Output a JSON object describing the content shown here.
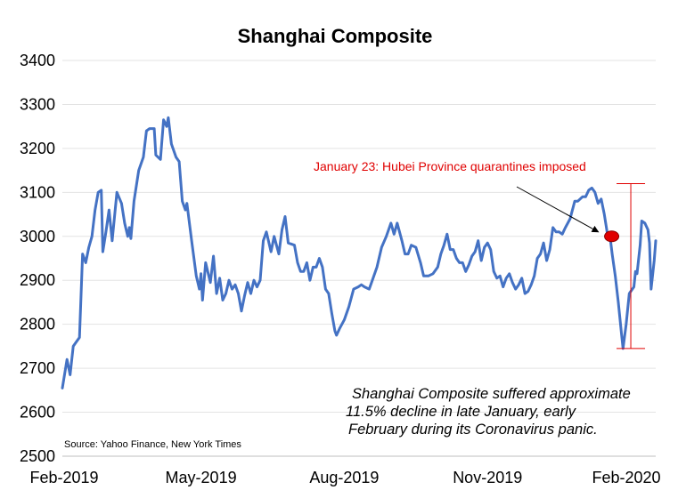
{
  "chart_data": {
    "type": "line",
    "title": "Shanghai Composite",
    "xlabel": "",
    "ylabel": "",
    "ylim": [
      2500,
      3400
    ],
    "yticks": [
      2500,
      2600,
      2700,
      2800,
      2900,
      3000,
      3100,
      3200,
      3300,
      3400
    ],
    "xlim": [
      "2019-02-01",
      "2020-02-17"
    ],
    "xticks": [
      {
        "date": "2019-02-01",
        "label": "Feb-2019"
      },
      {
        "date": "2019-05-01",
        "label": "May-2019"
      },
      {
        "date": "2019-08-01",
        "label": "Aug-2019"
      },
      {
        "date": "2019-11-01",
        "label": "Nov-2019"
      },
      {
        "date": "2020-02-01",
        "label": "Feb-2020"
      }
    ],
    "grid": true,
    "series": [
      {
        "color": "#4472c4",
        "points": [
          [
            "2019-02-01",
            2655
          ],
          [
            "2019-02-04",
            2720
          ],
          [
            "2019-02-06",
            2685
          ],
          [
            "2019-02-08",
            2750
          ],
          [
            "2019-02-10",
            2760
          ],
          [
            "2019-02-12",
            2770
          ],
          [
            "2019-02-14",
            2960
          ],
          [
            "2019-02-16",
            2940
          ],
          [
            "2019-02-18",
            2975
          ],
          [
            "2019-02-20",
            3000
          ],
          [
            "2019-02-22",
            3060
          ],
          [
            "2019-02-24",
            3100
          ],
          [
            "2019-02-26",
            3105
          ],
          [
            "2019-02-27",
            2965
          ],
          [
            "2019-03-01",
            3010
          ],
          [
            "2019-03-03",
            3060
          ],
          [
            "2019-03-05",
            2990
          ],
          [
            "2019-03-08",
            3100
          ],
          [
            "2019-03-11",
            3075
          ],
          [
            "2019-03-13",
            3030
          ],
          [
            "2019-03-15",
            3000
          ],
          [
            "2019-03-16",
            3020
          ],
          [
            "2019-03-17",
            2995
          ],
          [
            "2019-03-19",
            3080
          ],
          [
            "2019-03-22",
            3150
          ],
          [
            "2019-03-25",
            3180
          ],
          [
            "2019-03-27",
            3240
          ],
          [
            "2019-03-29",
            3245
          ],
          [
            "2019-04-01",
            3245
          ],
          [
            "2019-04-02",
            3185
          ],
          [
            "2019-04-05",
            3175
          ],
          [
            "2019-04-07",
            3265
          ],
          [
            "2019-04-09",
            3250
          ],
          [
            "2019-04-10",
            3270
          ],
          [
            "2019-04-12",
            3210
          ],
          [
            "2019-04-15",
            3180
          ],
          [
            "2019-04-17",
            3170
          ],
          [
            "2019-04-19",
            3080
          ],
          [
            "2019-04-21",
            3060
          ],
          [
            "2019-04-22",
            3075
          ],
          [
            "2019-04-25",
            2990
          ],
          [
            "2019-04-28",
            2910
          ],
          [
            "2019-04-30",
            2880
          ],
          [
            "2019-05-01",
            2915
          ],
          [
            "2019-05-02",
            2855
          ],
          [
            "2019-05-04",
            2940
          ],
          [
            "2019-05-07",
            2895
          ],
          [
            "2019-05-09",
            2955
          ],
          [
            "2019-05-11",
            2870
          ],
          [
            "2019-05-13",
            2905
          ],
          [
            "2019-05-15",
            2855
          ],
          [
            "2019-05-17",
            2870
          ],
          [
            "2019-05-19",
            2900
          ],
          [
            "2019-05-21",
            2880
          ],
          [
            "2019-05-23",
            2890
          ],
          [
            "2019-05-25",
            2870
          ],
          [
            "2019-05-27",
            2830
          ],
          [
            "2019-05-29",
            2865
          ],
          [
            "2019-05-31",
            2895
          ],
          [
            "2019-06-02",
            2870
          ],
          [
            "2019-06-04",
            2900
          ],
          [
            "2019-06-06",
            2885
          ],
          [
            "2019-06-08",
            2900
          ],
          [
            "2019-06-10",
            2990
          ],
          [
            "2019-06-12",
            3010
          ],
          [
            "2019-06-15",
            2965
          ],
          [
            "2019-06-17",
            3000
          ],
          [
            "2019-06-20",
            2960
          ],
          [
            "2019-06-22",
            3015
          ],
          [
            "2019-06-24",
            3045
          ],
          [
            "2019-06-26",
            2985
          ],
          [
            "2019-06-30",
            2980
          ],
          [
            "2019-07-02",
            2940
          ],
          [
            "2019-07-04",
            2920
          ],
          [
            "2019-07-06",
            2920
          ],
          [
            "2019-07-08",
            2940
          ],
          [
            "2019-07-10",
            2900
          ],
          [
            "2019-07-12",
            2930
          ],
          [
            "2019-07-14",
            2930
          ],
          [
            "2019-07-16",
            2950
          ],
          [
            "2019-07-18",
            2930
          ],
          [
            "2019-07-20",
            2880
          ],
          [
            "2019-07-22",
            2870
          ],
          [
            "2019-07-24",
            2825
          ],
          [
            "2019-07-26",
            2785
          ],
          [
            "2019-07-27",
            2775
          ],
          [
            "2019-07-29",
            2790
          ],
          [
            "2019-08-01",
            2810
          ],
          [
            "2019-08-04",
            2840
          ],
          [
            "2019-08-07",
            2880
          ],
          [
            "2019-08-10",
            2885
          ],
          [
            "2019-08-12",
            2890
          ],
          [
            "2019-08-14",
            2885
          ],
          [
            "2019-08-17",
            2880
          ],
          [
            "2019-08-19",
            2900
          ],
          [
            "2019-08-22",
            2930
          ],
          [
            "2019-08-25",
            2975
          ],
          [
            "2019-08-28",
            3000
          ],
          [
            "2019-08-31",
            3030
          ],
          [
            "2019-09-02",
            3005
          ],
          [
            "2019-09-04",
            3030
          ],
          [
            "2019-09-07",
            2990
          ],
          [
            "2019-09-09",
            2960
          ],
          [
            "2019-09-11",
            2960
          ],
          [
            "2019-09-13",
            2980
          ],
          [
            "2019-09-16",
            2975
          ],
          [
            "2019-09-19",
            2940
          ],
          [
            "2019-09-21",
            2910
          ],
          [
            "2019-09-24",
            2910
          ],
          [
            "2019-09-27",
            2915
          ],
          [
            "2019-09-30",
            2930
          ],
          [
            "2019-10-02",
            2960
          ],
          [
            "2019-10-04",
            2980
          ],
          [
            "2019-10-06",
            3005
          ],
          [
            "2019-10-08",
            2970
          ],
          [
            "2019-10-10",
            2970
          ],
          [
            "2019-10-12",
            2950
          ],
          [
            "2019-10-14",
            2940
          ],
          [
            "2019-10-16",
            2940
          ],
          [
            "2019-10-18",
            2920
          ],
          [
            "2019-10-20",
            2935
          ],
          [
            "2019-10-22",
            2955
          ],
          [
            "2019-10-24",
            2965
          ],
          [
            "2019-10-26",
            2990
          ],
          [
            "2019-10-28",
            2945
          ],
          [
            "2019-10-30",
            2975
          ],
          [
            "2019-11-01",
            2985
          ],
          [
            "2019-11-03",
            2970
          ],
          [
            "2019-11-05",
            2920
          ],
          [
            "2019-11-07",
            2905
          ],
          [
            "2019-11-09",
            2910
          ],
          [
            "2019-11-11",
            2885
          ],
          [
            "2019-11-13",
            2905
          ],
          [
            "2019-11-15",
            2915
          ],
          [
            "2019-11-17",
            2895
          ],
          [
            "2019-11-19",
            2880
          ],
          [
            "2019-11-21",
            2890
          ],
          [
            "2019-11-23",
            2905
          ],
          [
            "2019-11-25",
            2870
          ],
          [
            "2019-11-27",
            2875
          ],
          [
            "2019-11-29",
            2890
          ],
          [
            "2019-12-01",
            2910
          ],
          [
            "2019-12-03",
            2950
          ],
          [
            "2019-12-05",
            2960
          ],
          [
            "2019-12-07",
            2985
          ],
          [
            "2019-12-09",
            2945
          ],
          [
            "2019-12-11",
            2970
          ],
          [
            "2019-12-13",
            3020
          ],
          [
            "2019-12-15",
            3010
          ],
          [
            "2019-12-17",
            3010
          ],
          [
            "2019-12-19",
            3005
          ],
          [
            "2019-12-21",
            3020
          ],
          [
            "2019-12-24",
            3040
          ],
          [
            "2019-12-27",
            3080
          ],
          [
            "2019-12-29",
            3080
          ],
          [
            "2020-01-01",
            3090
          ],
          [
            "2020-01-03",
            3090
          ],
          [
            "2020-01-05",
            3105
          ],
          [
            "2020-01-07",
            3110
          ],
          [
            "2020-01-09",
            3100
          ],
          [
            "2020-01-11",
            3075
          ],
          [
            "2020-01-13",
            3085
          ],
          [
            "2020-01-15",
            3050
          ],
          [
            "2020-01-17",
            3005
          ],
          [
            "2020-01-19",
            2990
          ],
          [
            "2020-01-20",
            2960
          ],
          [
            "2020-01-22",
            2910
          ],
          [
            "2020-01-24",
            2850
          ],
          [
            "2020-01-26",
            2780
          ],
          [
            "2020-01-27",
            2745
          ],
          [
            "2020-01-29",
            2800
          ],
          [
            "2020-01-31",
            2870
          ],
          [
            "2020-02-03",
            2885
          ],
          [
            "2020-02-04",
            2920
          ],
          [
            "2020-02-05",
            2915
          ],
          [
            "2020-02-07",
            2980
          ],
          [
            "2020-02-08",
            3035
          ],
          [
            "2020-02-10",
            3030
          ],
          [
            "2020-02-12",
            3015
          ],
          [
            "2020-02-13",
            2985
          ],
          [
            "2020-02-14",
            2880
          ],
          [
            "2020-02-16",
            2945
          ],
          [
            "2020-02-17",
            2990
          ]
        ]
      }
    ],
    "annotations": {
      "event_label": "January 23: Hubei Province quarantines imposed",
      "event_point": {
        "date": "2020-01-18",
        "value": 3000
      },
      "arrow_from": {
        "date": "2019-12-22",
        "value": 3050
      },
      "range_bar": {
        "date": "2020-02-01",
        "low": 2745,
        "high": 3120
      },
      "note_lines": [
        "Shanghai Composite suffered approximate",
        "11.5% decline in late January, early",
        "February during its Coronavirus panic."
      ],
      "source": "Source: Yahoo Finance, New York Times",
      "event_color": "#e00000",
      "marker_fill": "#e00000",
      "marker_stroke": "#8b0000"
    }
  }
}
